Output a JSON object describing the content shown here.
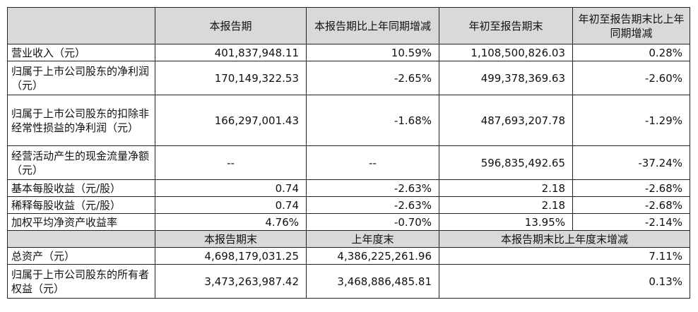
{
  "header": {
    "col1": "本报告期",
    "col2": "本报告期比上年同期增减",
    "col3": "年初至报告期末",
    "col4": "年初至报告期末比上年同期增减"
  },
  "rows": [
    {
      "label": "营业收入（元）",
      "v1": "401,837,948.11",
      "v2": "10.59%",
      "v3": "1,108,500,826.03",
      "v4": "0.28%"
    },
    {
      "label": "归属于上市公司股东的净利润（元）",
      "v1": "170,149,322.53",
      "v2": "-2.65%",
      "v3": "499,378,369.63",
      "v4": "-2.60%"
    },
    {
      "label": "归属于上市公司股东的扣除非经常性损益的净利润（元）",
      "v1": "166,297,001.43",
      "v2": "-1.68%",
      "v3": "487,693,207.78",
      "v4": "-1.29%"
    },
    {
      "label": "经营活动产生的现金流量净额（元）",
      "v1": "--",
      "v2": "--",
      "v3": "596,835,492.65",
      "v4": "-37.24%"
    },
    {
      "label": "基本每股收益（元/股）",
      "v1": "0.74",
      "v2": "-2.63%",
      "v3": "2.18",
      "v4": "-2.68%"
    },
    {
      "label": "稀释每股收益（元/股）",
      "v1": "0.74",
      "v2": "-2.63%",
      "v3": "2.18",
      "v4": "-2.68%"
    },
    {
      "label": "加权平均净资产收益率",
      "v1": "4.76%",
      "v2": "-0.70%",
      "v3": "13.95%",
      "v4": "-2.14%"
    }
  ],
  "header2": {
    "col1": "本报告期末",
    "col2": "上年度末",
    "col3": "本报告期末比上年度末增减"
  },
  "rows2": [
    {
      "label": "总资产（元）",
      "v1": "4,698,179,031.25",
      "v2": "4,386,225,261.96",
      "v3": "7.11%"
    },
    {
      "label": "归属于上市公司股东的所有者权益（元）",
      "v1": "3,473,263,987.42",
      "v2": "3,468,886,485.81",
      "v3": "0.13%"
    }
  ]
}
